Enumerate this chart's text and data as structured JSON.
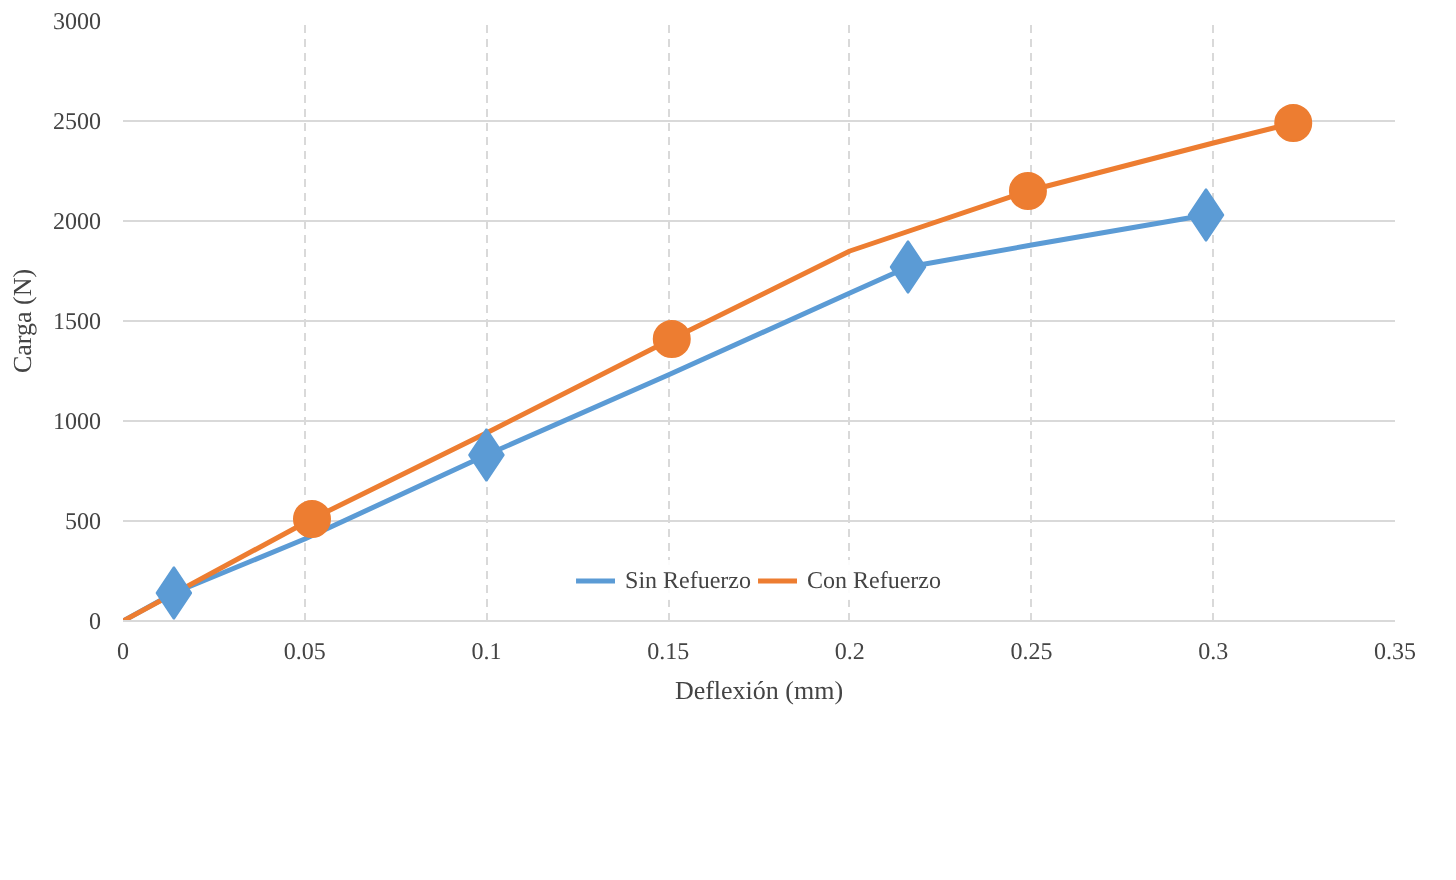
{
  "chart_data": {
    "type": "line",
    "xlabel": "Deflexión (mm)",
    "ylabel": "Carga (N)",
    "xlim": [
      0,
      0.35
    ],
    "ylim": [
      0,
      3000
    ],
    "xticks": [
      0,
      0.05,
      0.1,
      0.15,
      0.2,
      0.25,
      0.3,
      0.35
    ],
    "yticks": [
      0,
      500,
      1000,
      1500,
      2000,
      2500,
      3000
    ],
    "grid": true,
    "legend": "bottom",
    "line_style": "solid",
    "series": [
      {
        "name": "Sin Refuerzo",
        "color": "#5b9bd5",
        "marker": "none",
        "x": [
          0,
          0.014,
          0.05,
          0.1,
          0.15,
          0.2,
          0.216,
          0.25,
          0.298
        ],
        "values": [
          0,
          140,
          410,
          830,
          1230,
          1640,
          1770,
          1880,
          2030
        ]
      },
      {
        "name": "Con Refuerzo",
        "color": "#ed7d31",
        "marker": "none",
        "x": [
          0,
          0.052,
          0.1,
          0.151,
          0.2,
          0.249,
          0.3,
          0.322
        ],
        "values": [
          0,
          510,
          940,
          1410,
          1850,
          2150,
          2390,
          2490
        ]
      },
      {
        "type": "scatter",
        "color": "#5b9bd5",
        "marker": "diamond",
        "x": [
          0.014,
          0.1,
          0.216,
          0.298
        ],
        "values": [
          140,
          830,
          1770,
          2030
        ]
      },
      {
        "type": "scatter",
        "color": "#ed7d31",
        "marker": "circle",
        "x": [
          0.052,
          0.151,
          0.249,
          0.322
        ],
        "values": [
          510,
          1410,
          2150,
          2490
        ]
      }
    ]
  }
}
